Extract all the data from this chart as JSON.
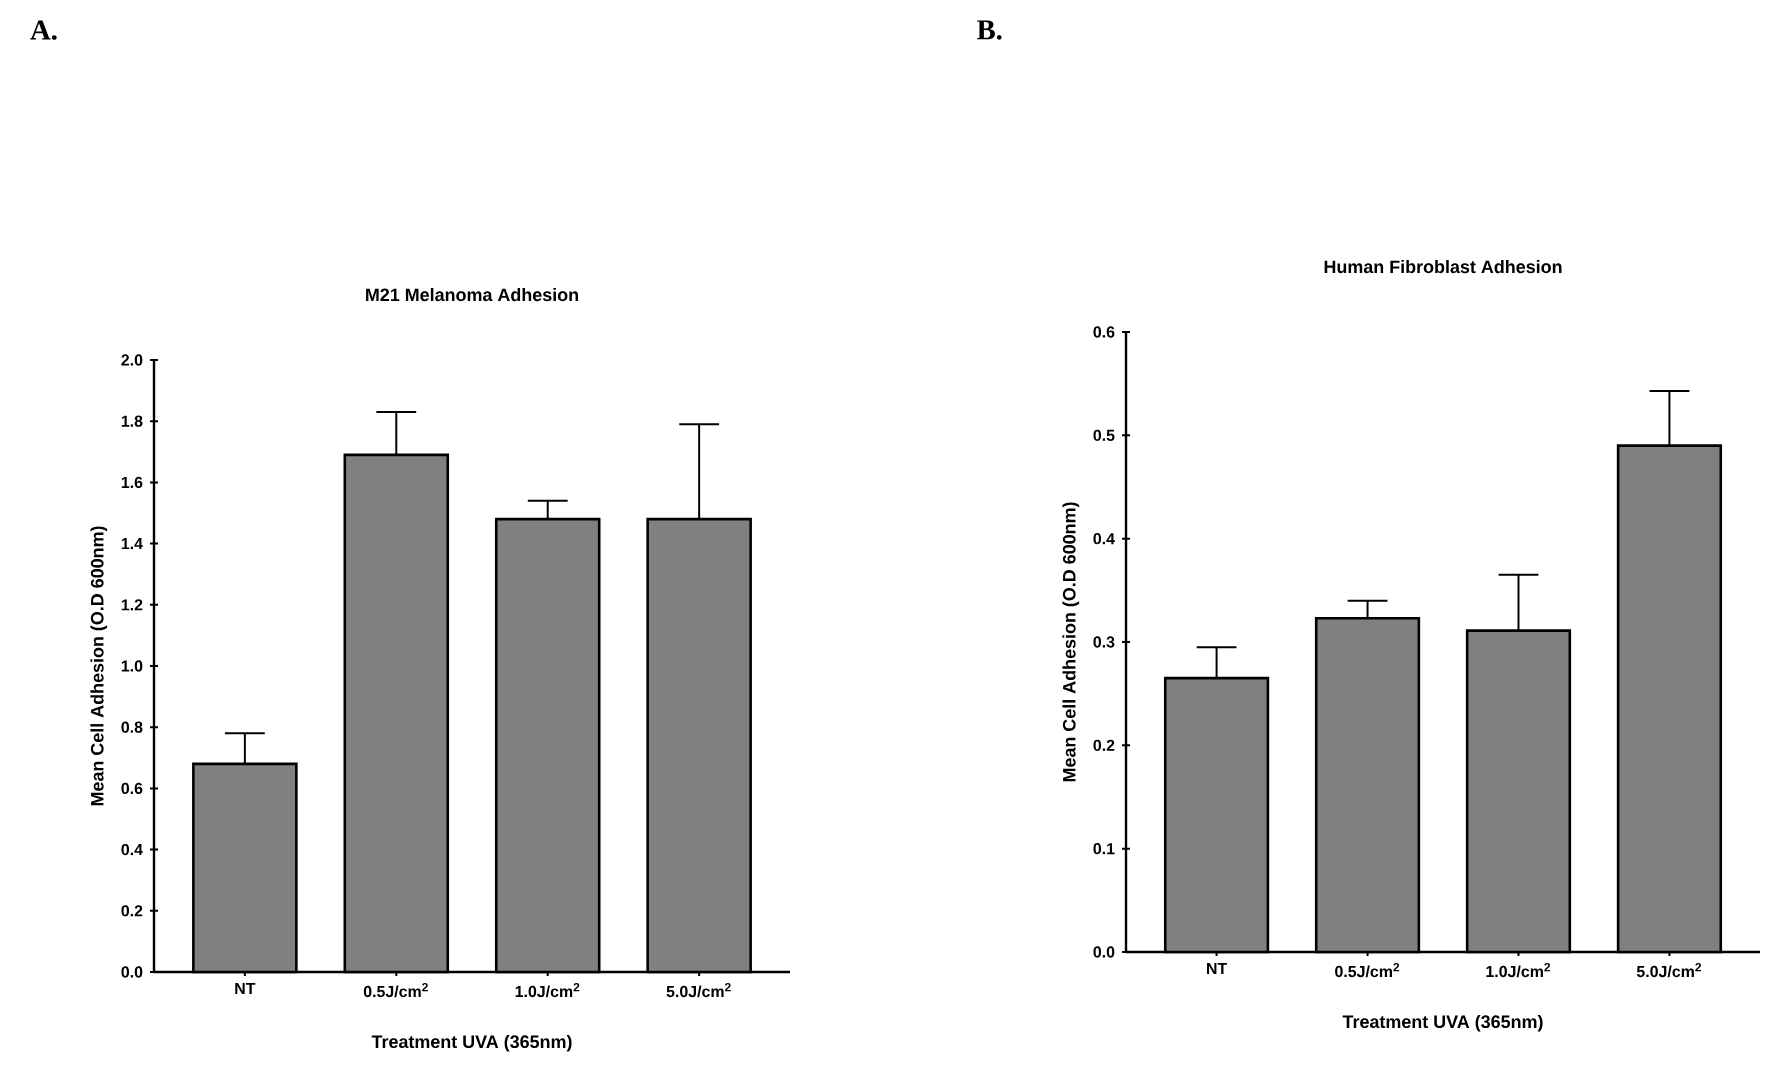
{
  "chart_data": [
    {
      "type": "bar",
      "title": "M21 Melanoma Adhesion",
      "xlabel": "Treatment UVA (365nm)",
      "ylabel": "Mean Cell Adhesion (O.D 600nm)",
      "categories": [
        "NT",
        "0.5J/cm$^{2}$",
        "1.0J/cm$^{2}$",
        "5.0J/cm$^{2}$"
      ],
      "values": [
        0.68,
        1.69,
        1.48,
        1.48
      ],
      "errors": [
        0.1,
        0.14,
        0.06,
        0.31
      ],
      "color": "#808080",
      "ylim": [
        0,
        2.0
      ],
      "yticks": [
        {
          "value": 0,
          "label": "0.0"
        },
        0.2,
        0.4,
        0.6,
        0.8,
        {
          "value": 1.0,
          "label": "1.0"
        },
        1.2,
        1.4,
        1.6,
        1.8,
        {
          "value": 2.0,
          "label": "2.0"
        }
      ],
      "annotations": [
        "A."
      ]
    },
    {
      "type": "bar",
      "title": "Human Fibroblast Adhesion",
      "xlabel": "Treatment UVA (365nm)",
      "ylabel": "Mean Cell Adhesion (O.D 600nm)",
      "categories": [
        "NT",
        "0.5J/cm$^{2}$",
        "1.0J/cm$^{2}$",
        "5.0J/cm$^{2}$"
      ],
      "values": [
        0.265,
        0.323,
        0.311,
        0.49
      ],
      "errors": [
        0.03,
        0.017,
        0.054,
        0.053
      ],
      "color": "#808080",
      "ylim": [
        0,
        0.6
      ],
      "yticks": [
        {
          "value": 0,
          "label": "0.0"
        },
        0.1,
        0.2,
        0.3,
        0.4,
        0.5,
        0.6
      ],
      "annotations": [
        "B."
      ]
    }
  ]
}
